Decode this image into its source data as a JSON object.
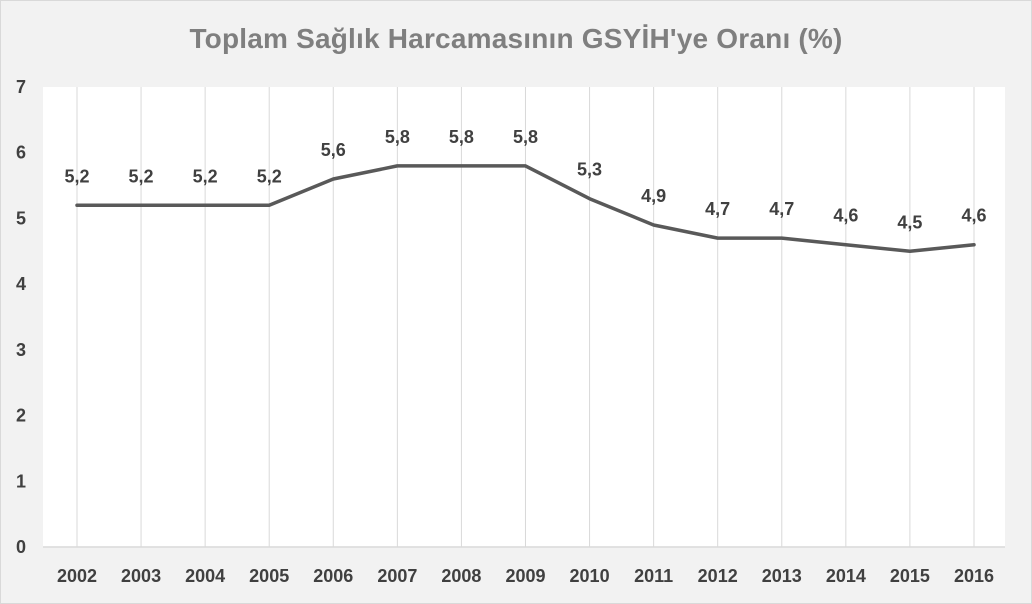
{
  "chart_data": {
    "type": "line",
    "title": "Toplam Sağlık Harcamasının GSYİH'ye Oranı (%)",
    "categories": [
      "2002",
      "2003",
      "2004",
      "2005",
      "2006",
      "2007",
      "2008",
      "2009",
      "2010",
      "2011",
      "2012",
      "2013",
      "2014",
      "2015",
      "2016"
    ],
    "series": [
      {
        "values": [
          5.2,
          5.2,
          5.2,
          5.2,
          5.6,
          5.8,
          5.8,
          5.8,
          5.3,
          4.9,
          4.7,
          4.7,
          4.6,
          4.5,
          4.6
        ],
        "color": "#595959"
      }
    ],
    "data_labels": [
      "5,2",
      "5,2",
      "5,2",
      "5,2",
      "5,6",
      "5,8",
      "5,8",
      "5,8",
      "5,3",
      "4,9",
      "4,7",
      "4,7",
      "4,6",
      "4,5",
      "4,6"
    ],
    "y_ticks": [
      "0",
      "1",
      "2",
      "3",
      "4",
      "5",
      "6",
      "7"
    ],
    "ylim": [
      0,
      7
    ],
    "grid": "vertical",
    "legend": "none",
    "colors": {
      "chart_background": "#f2f2f2",
      "plot_background": "#ffffff",
      "gridline": "#d9d9d9",
      "line": "#595959",
      "title": "#7f7f7f",
      "text": "#404040"
    }
  }
}
